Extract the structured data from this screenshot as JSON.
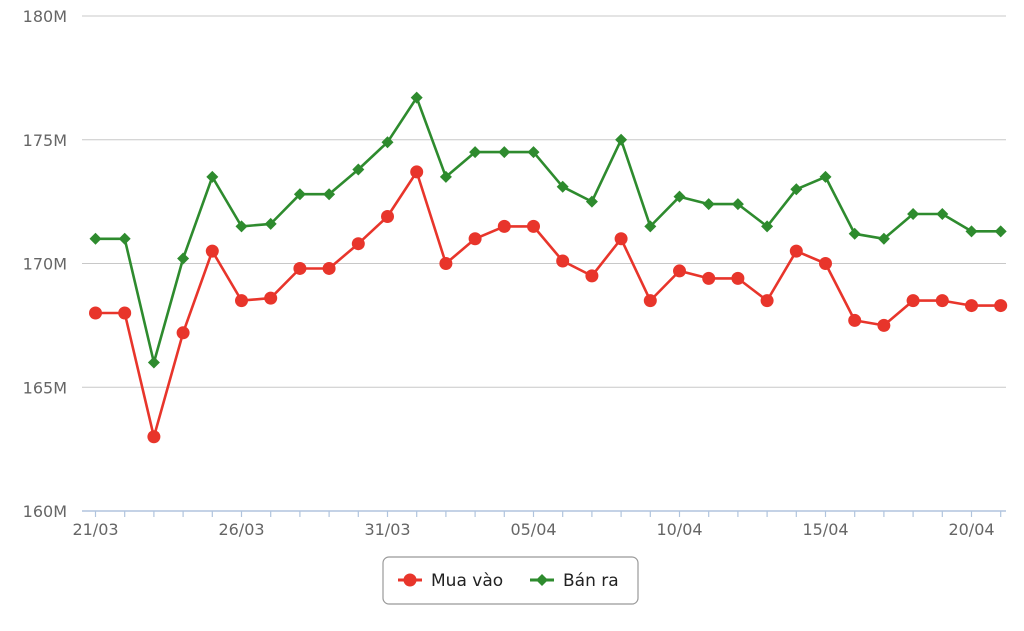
{
  "chart_data": {
    "type": "line",
    "title": "",
    "xlabel": "",
    "ylabel": "",
    "x": [
      "21/03",
      "22/03",
      "23/03",
      "24/03",
      "25/03",
      "26/03",
      "27/03",
      "28/03",
      "29/03",
      "30/03",
      "31/03",
      "01/04",
      "02/04",
      "03/04",
      "04/04",
      "05/04",
      "06/04",
      "07/04",
      "08/04",
      "09/04",
      "10/04",
      "11/04",
      "12/04",
      "13/04",
      "14/04",
      "15/04",
      "16/04",
      "17/04",
      "18/04",
      "19/04",
      "20/04",
      "21/04"
    ],
    "x_tick_labels": [
      "21/03",
      "26/03",
      "31/03",
      "05/04",
      "10/04",
      "15/04",
      "20/04"
    ],
    "y_tick_labels": [
      "160M",
      "165M",
      "170M",
      "175M",
      "180M"
    ],
    "y_ticks": [
      160000000,
      165000000,
      170000000,
      175000000,
      180000000
    ],
    "ylim": [
      160000000,
      180000000
    ],
    "grid": "horizontal",
    "legend_position": "bottom-center",
    "series": [
      {
        "name": "Mua vào",
        "color": "#e8352b",
        "marker": "circle",
        "values": [
          168000000,
          168000000,
          163000000,
          167200000,
          170500000,
          168500000,
          168600000,
          169800000,
          169800000,
          170800000,
          171900000,
          173700000,
          170000000,
          171000000,
          171500000,
          171500000,
          170100000,
          169500000,
          171000000,
          168500000,
          169700000,
          169400000,
          169400000,
          168500000,
          170500000,
          170000000,
          167700000,
          167500000,
          168500000,
          168500000,
          168300000,
          168300000
        ]
      },
      {
        "name": "Bán ra",
        "color": "#2e8b2e",
        "marker": "diamond",
        "values": [
          171000000,
          171000000,
          166000000,
          170200000,
          173500000,
          171500000,
          171600000,
          172800000,
          172800000,
          173800000,
          174900000,
          176700000,
          173500000,
          174500000,
          174500000,
          174500000,
          173100000,
          172500000,
          175000000,
          171500000,
          172700000,
          172400000,
          172400000,
          171500000,
          173000000,
          173500000,
          171200000,
          171000000,
          172000000,
          172000000,
          171300000,
          171300000
        ]
      }
    ]
  }
}
